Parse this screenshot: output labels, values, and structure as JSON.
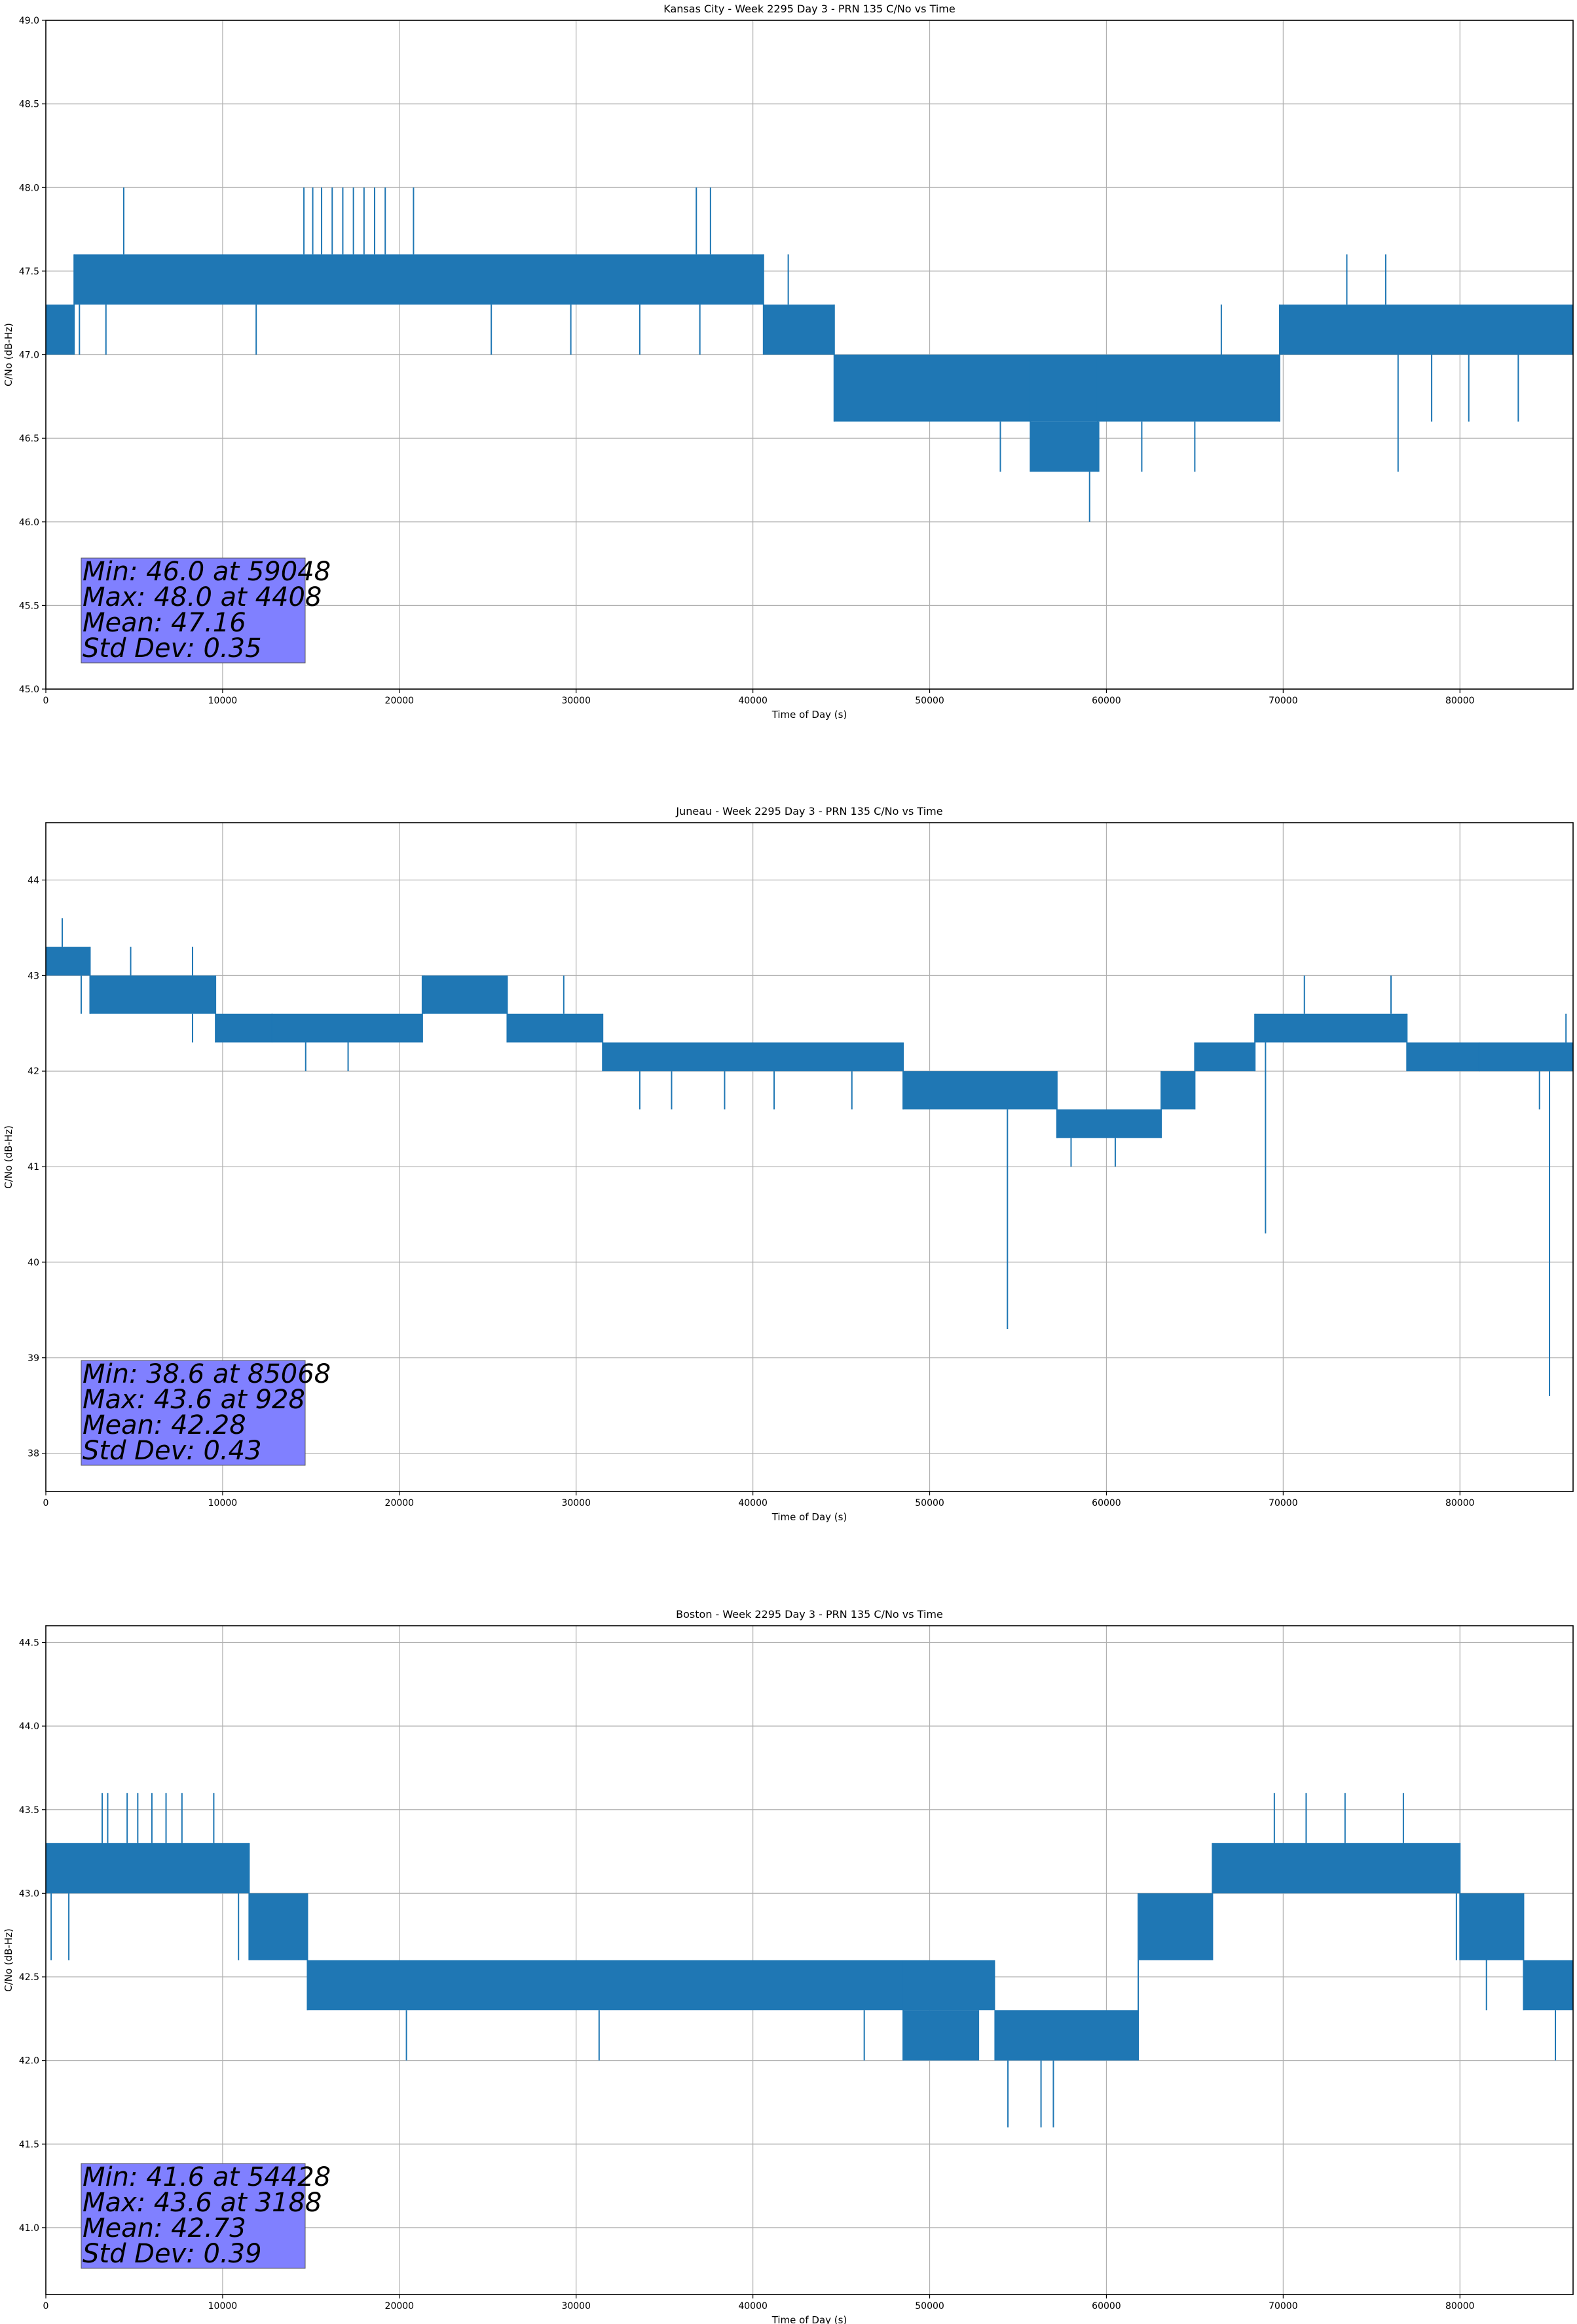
{
  "chart_data": [
    {
      "type": "line",
      "title": "Kansas City - Week 2295 Day 3 - PRN 135 C/No vs Time",
      "xlabel": "Time of Day (s)",
      "ylabel": "C/No (dB-Hz)",
      "xlim": [
        0,
        86400
      ],
      "ylim": [
        45.0,
        49.0
      ],
      "xticks": [
        0,
        10000,
        20000,
        30000,
        40000,
        50000,
        60000,
        70000,
        80000
      ],
      "yticks": [
        45.0,
        45.5,
        46.0,
        46.5,
        47.0,
        47.5,
        48.0,
        48.5,
        49.0
      ],
      "ytick_decimals": 1,
      "grid": true,
      "color": "#1f77b4",
      "stats": [
        "Min: 46.0 at 59048",
        "Max: 48.0 at 4408",
        "Mean: 47.16",
        "Std Dev: 0.35"
      ],
      "bands": [
        {
          "x": [
            0,
            1600
          ],
          "y": [
            47.0,
            47.3
          ]
        },
        {
          "x": [
            1600,
            40600
          ],
          "y": [
            47.3,
            47.6
          ]
        },
        {
          "x": [
            40600,
            44600
          ],
          "y": [
            47.0,
            47.3
          ]
        },
        {
          "x": [
            44600,
            59500
          ],
          "y": [
            46.6,
            47.0
          ]
        },
        {
          "x": [
            55700,
            59600
          ],
          "y": [
            46.3,
            46.6
          ]
        },
        {
          "x": [
            59500,
            69800
          ],
          "y": [
            46.6,
            47.0
          ]
        },
        {
          "x": [
            69800,
            86400
          ],
          "y": [
            47.0,
            47.3
          ]
        }
      ],
      "spikes": [
        [
          4408,
          48.0
        ],
        [
          14600,
          48.0
        ],
        [
          15100,
          48.0
        ],
        [
          15600,
          48.0
        ],
        [
          16200,
          48.0
        ],
        [
          16800,
          48.0
        ],
        [
          17400,
          48.0
        ],
        [
          18000,
          48.0
        ],
        [
          18600,
          48.0
        ],
        [
          19200,
          48.0
        ],
        [
          20800,
          48.0
        ],
        [
          36800,
          48.0
        ],
        [
          37600,
          48.0
        ],
        [
          1900,
          47.0
        ],
        [
          3400,
          47.0
        ],
        [
          11900,
          47.0
        ],
        [
          25200,
          47.0
        ],
        [
          29700,
          47.0
        ],
        [
          33600,
          47.0
        ],
        [
          37000,
          47.0
        ],
        [
          42000,
          47.6
        ],
        [
          50000,
          46.6
        ],
        [
          54000,
          46.3
        ],
        [
          59048,
          46.0
        ],
        [
          62000,
          46.3
        ],
        [
          65000,
          46.3
        ],
        [
          66500,
          47.3
        ],
        [
          73600,
          47.6
        ],
        [
          75800,
          47.6
        ],
        [
          76500,
          46.3
        ],
        [
          78400,
          46.6
        ],
        [
          80500,
          46.6
        ],
        [
          83300,
          46.6
        ]
      ]
    },
    {
      "type": "line",
      "title": "Juneau - Week 2295 Day 3 - PRN 135 C/No vs Time",
      "xlabel": "Time of Day (s)",
      "ylabel": "C/No (dB-Hz)",
      "xlim": [
        0,
        86400
      ],
      "ylim": [
        37.6,
        44.6
      ],
      "xticks": [
        0,
        10000,
        20000,
        30000,
        40000,
        50000,
        60000,
        70000,
        80000
      ],
      "yticks": [
        38,
        39,
        40,
        41,
        42,
        43,
        44
      ],
      "ytick_decimals": 0,
      "grid": true,
      "color": "#1f77b4",
      "stats": [
        "Min: 38.6 at 85068",
        "Max: 43.6 at 928",
        "Mean: 42.28",
        "Std Dev: 0.43"
      ],
      "bands": [
        {
          "x": [
            0,
            2500
          ],
          "y": [
            43.0,
            43.3
          ]
        },
        {
          "x": [
            2500,
            9600
          ],
          "y": [
            42.6,
            43.0
          ]
        },
        {
          "x": [
            9600,
            12800
          ],
          "y": [
            42.3,
            42.6
          ]
        },
        {
          "x": [
            12800,
            21300
          ],
          "y": [
            42.3,
            42.6
          ]
        },
        {
          "x": [
            21300,
            26100
          ],
          "y": [
            42.6,
            43.0
          ]
        },
        {
          "x": [
            26100,
            31500
          ],
          "y": [
            42.3,
            42.6
          ]
        },
        {
          "x": [
            31500,
            48500
          ],
          "y": [
            42.0,
            42.3
          ]
        },
        {
          "x": [
            48500,
            57200
          ],
          "y": [
            41.6,
            42.0
          ]
        },
        {
          "x": [
            57200,
            63100
          ],
          "y": [
            41.3,
            41.6
          ]
        },
        {
          "x": [
            63100,
            65000
          ],
          "y": [
            41.6,
            42.0
          ]
        },
        {
          "x": [
            65000,
            68400
          ],
          "y": [
            42.0,
            42.3
          ]
        },
        {
          "x": [
            68400,
            77000
          ],
          "y": [
            42.3,
            42.6
          ]
        },
        {
          "x": [
            77000,
            81100
          ],
          "y": [
            42.0,
            42.3
          ]
        },
        {
          "x": [
            81100,
            86400
          ],
          "y": [
            42.0,
            42.3
          ]
        }
      ],
      "spikes": [
        [
          928,
          43.6
        ],
        [
          300,
          43.0
        ],
        [
          2000,
          42.6
        ],
        [
          4800,
          43.3
        ],
        [
          8300,
          43.3
        ],
        [
          8300,
          42.3
        ],
        [
          14700,
          42.0
        ],
        [
          17100,
          42.0
        ],
        [
          21400,
          43.0
        ],
        [
          29300,
          43.0
        ],
        [
          33600,
          41.6
        ],
        [
          35400,
          41.6
        ],
        [
          38400,
          41.6
        ],
        [
          41200,
          41.6
        ],
        [
          45600,
          41.6
        ],
        [
          54400,
          39.3
        ],
        [
          58000,
          41.0
        ],
        [
          60500,
          41.0
        ],
        [
          69000,
          40.3
        ],
        [
          71200,
          43.0
        ],
        [
          76100,
          43.0
        ],
        [
          85068,
          38.6
        ],
        [
          84500,
          41.6
        ],
        [
          86000,
          42.6
        ]
      ]
    },
    {
      "type": "line",
      "title": "Boston - Week 2295 Day 3 - PRN 135 C/No vs Time",
      "xlabel": "Time of Day (s)",
      "ylabel": "C/No (dB-Hz)",
      "xlim": [
        0,
        86400
      ],
      "ylim": [
        40.6,
        44.6
      ],
      "xticks": [
        0,
        10000,
        20000,
        30000,
        40000,
        50000,
        60000,
        70000,
        80000
      ],
      "yticks": [
        41.0,
        41.5,
        42.0,
        42.5,
        43.0,
        43.5,
        44.0,
        44.5
      ],
      "ytick_decimals": 1,
      "grid": true,
      "color": "#1f77b4",
      "stats": [
        "Min: 41.6 at 54428",
        "Max: 43.6 at 3188",
        "Mean: 42.73",
        "Std Dev: 0.39"
      ],
      "bands": [
        {
          "x": [
            0,
            11500
          ],
          "y": [
            43.0,
            43.3
          ]
        },
        {
          "x": [
            11500,
            14800
          ],
          "y": [
            42.6,
            43.0
          ]
        },
        {
          "x": [
            14800,
            53700
          ],
          "y": [
            42.3,
            42.6
          ]
        },
        {
          "x": [
            48500,
            52800
          ],
          "y": [
            42.0,
            42.3
          ]
        },
        {
          "x": [
            53700,
            61800
          ],
          "y": [
            42.0,
            42.3
          ]
        },
        {
          "x": [
            61800,
            66000
          ],
          "y": [
            42.6,
            43.0
          ]
        },
        {
          "x": [
            66000,
            80000
          ],
          "y": [
            43.0,
            43.3
          ]
        },
        {
          "x": [
            80000,
            83600
          ],
          "y": [
            42.6,
            43.0
          ]
        },
        {
          "x": [
            83600,
            86400
          ],
          "y": [
            42.3,
            42.6
          ]
        }
      ],
      "spikes": [
        [
          3188,
          43.6
        ],
        [
          3500,
          43.6
        ],
        [
          4600,
          43.6
        ],
        [
          5200,
          43.6
        ],
        [
          6000,
          43.6
        ],
        [
          6800,
          43.6
        ],
        [
          7700,
          43.6
        ],
        [
          9500,
          43.6
        ],
        [
          300,
          42.6
        ],
        [
          1300,
          42.6
        ],
        [
          10900,
          42.6
        ],
        [
          20400,
          42.0
        ],
        [
          31300,
          42.0
        ],
        [
          46300,
          42.0
        ],
        [
          50800,
          42.0
        ],
        [
          54428,
          41.6
        ],
        [
          56300,
          41.6
        ],
        [
          57000,
          41.6
        ],
        [
          69500,
          43.6
        ],
        [
          71300,
          43.6
        ],
        [
          73500,
          43.6
        ],
        [
          76800,
          43.6
        ],
        [
          79800,
          42.6
        ],
        [
          81500,
          42.3
        ],
        [
          85400,
          42.0
        ]
      ]
    }
  ]
}
